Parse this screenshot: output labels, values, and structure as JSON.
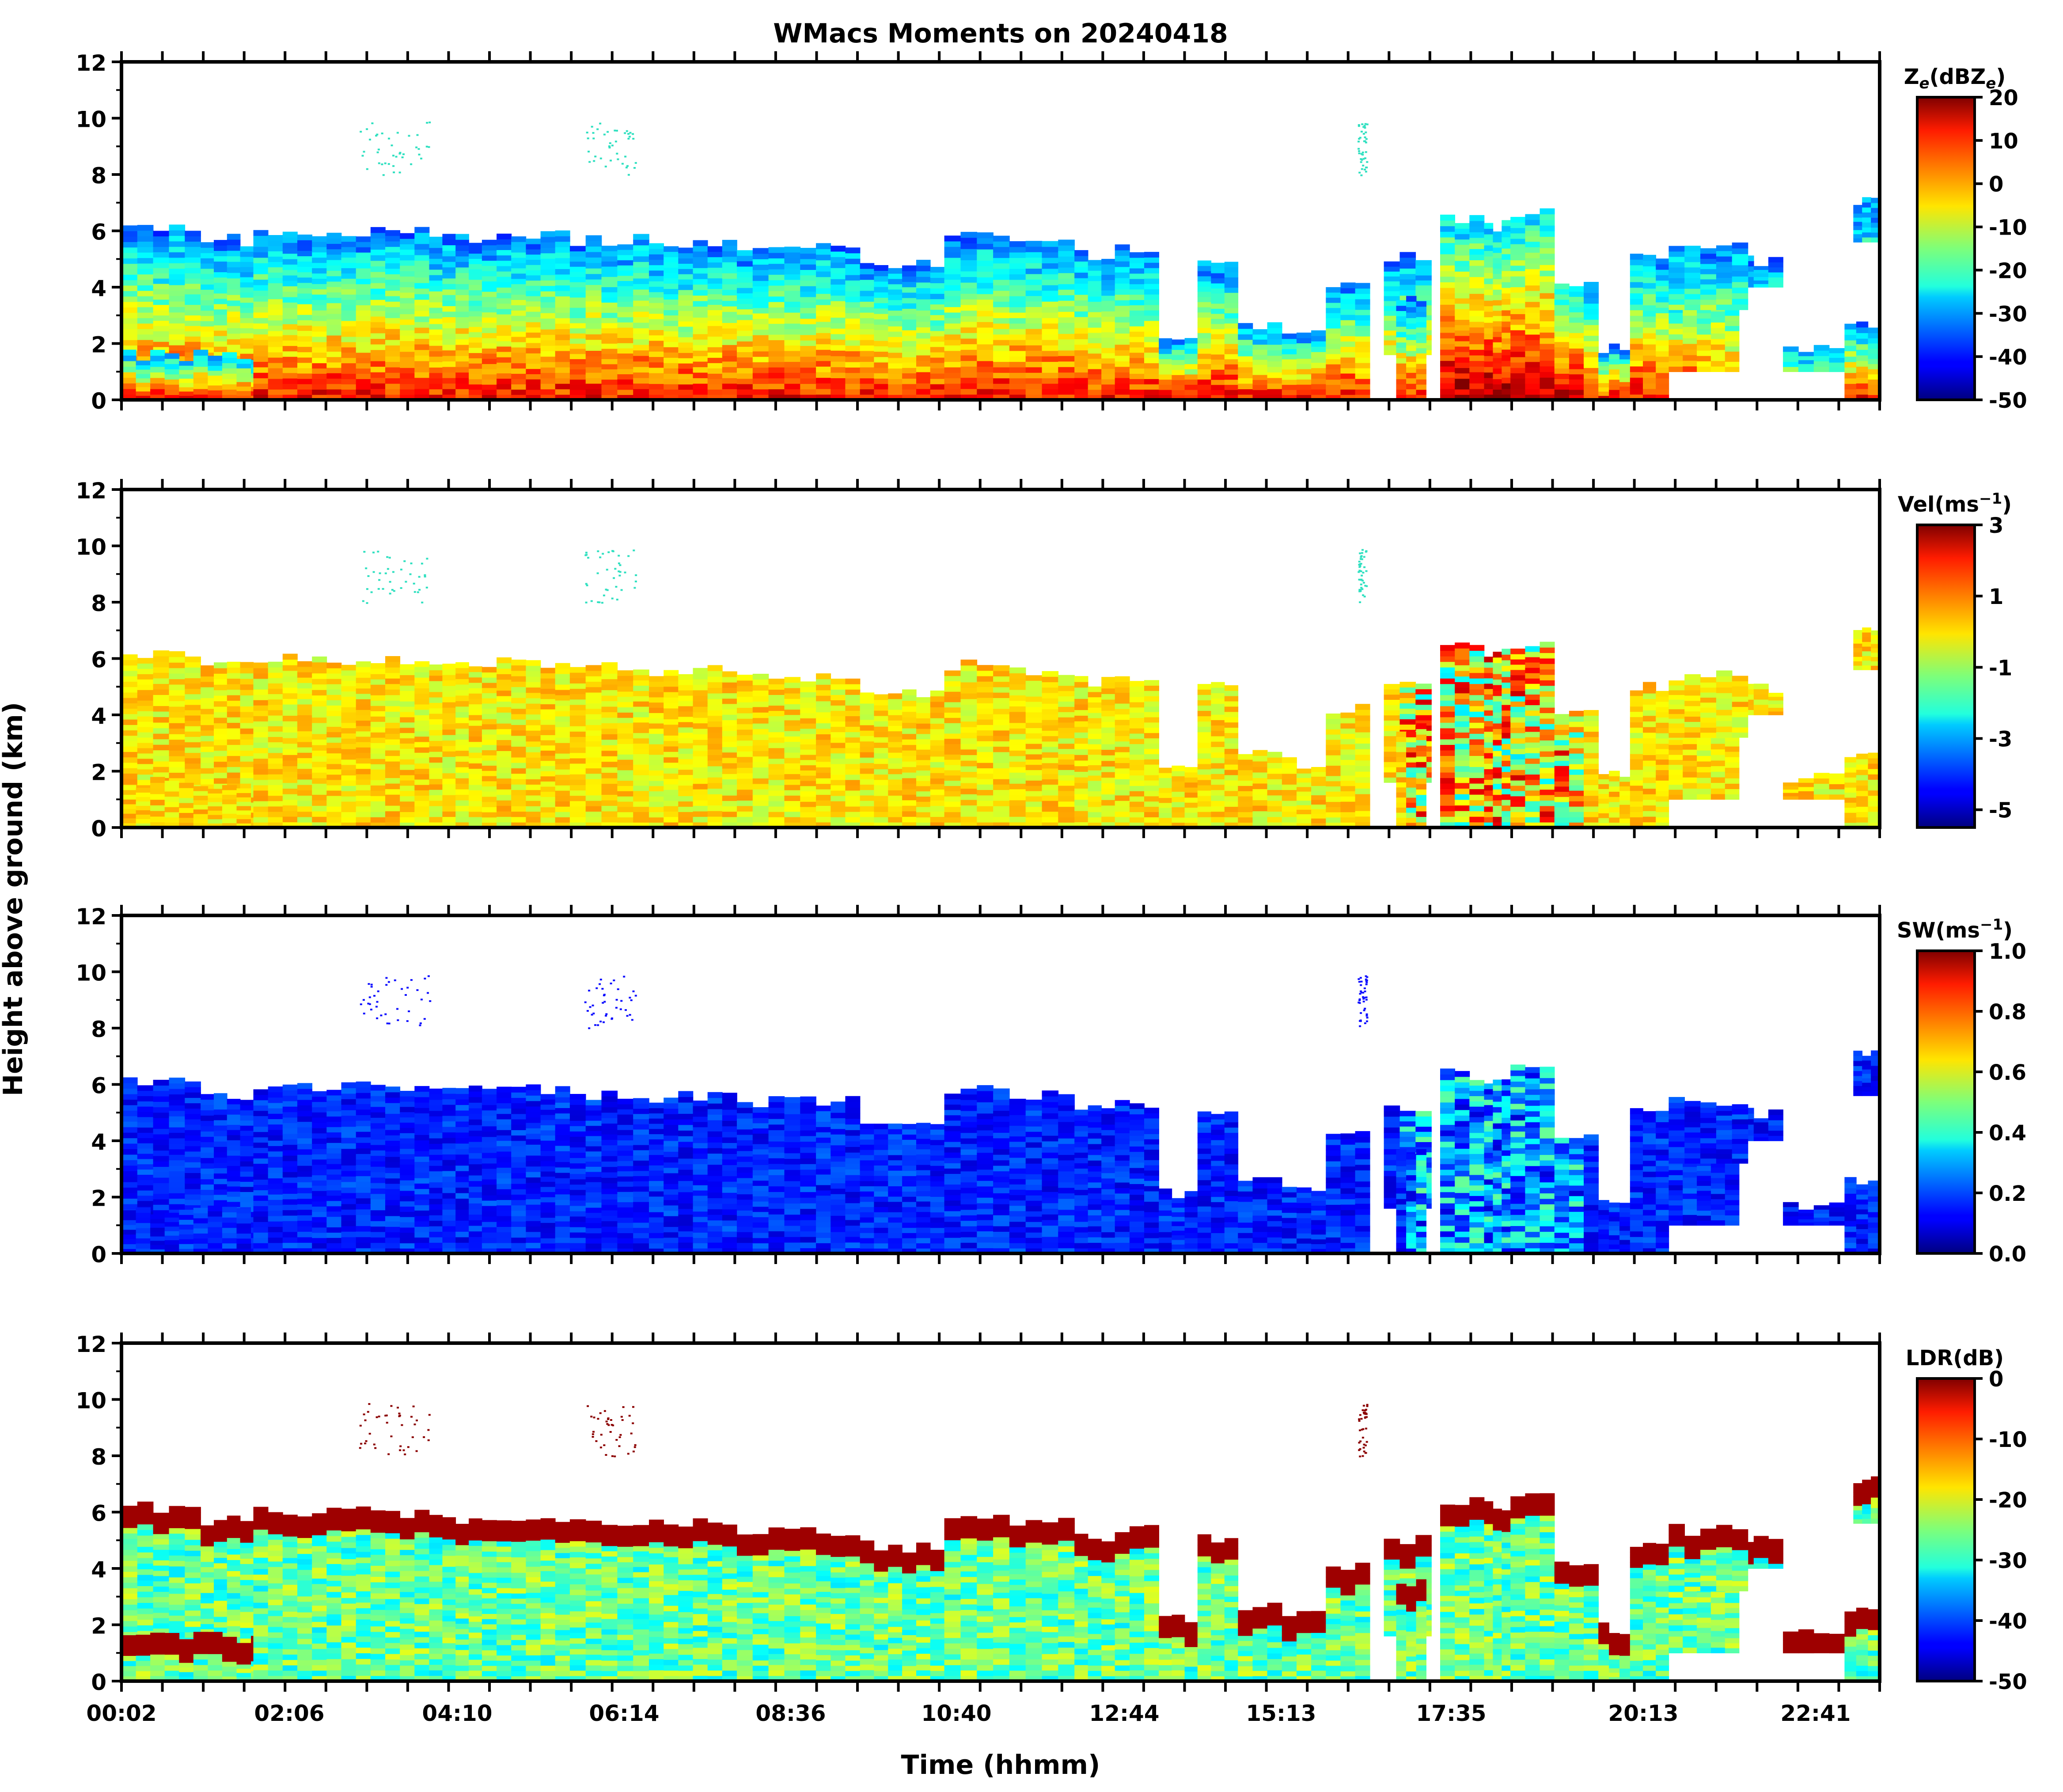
{
  "figure": {
    "title": "WMacs Moments on 20240418",
    "ylabel": "Height above ground (km)",
    "xlabel": "Time (hhmm)"
  },
  "chart_data": [
    {
      "type": "heatmap",
      "panel": "ze",
      "colorbar_label": "Z",
      "colorbar_label_sub": "e",
      "colorbar_label_rest": "(dBZ",
      "colorbar_label_sub2": "e",
      "colorbar_label_end": ")",
      "clim": [
        -50,
        20
      ],
      "colorbar_ticks": [
        "20",
        "10",
        "0",
        "-10",
        "-20",
        "-30",
        "-40",
        "-50"
      ],
      "ylim": [
        0,
        12
      ],
      "y_ticks": [
        "0",
        "2",
        "4",
        "6",
        "8",
        "10",
        "12"
      ],
      "x_tick_labels": [
        "00:02",
        "02:06",
        "04:10",
        "06:14",
        "08:36",
        "10:40",
        "12:44",
        "15:13",
        "17:35",
        "20:13",
        "22:41"
      ]
    },
    {
      "type": "heatmap",
      "panel": "vel",
      "colorbar_label": "Vel(ms",
      "colorbar_label_sup": "−1",
      "colorbar_label_end": ")",
      "clim": [
        -5.5,
        3
      ],
      "colorbar_ticks": [
        "3",
        "1",
        "-1",
        "-3",
        "-5"
      ],
      "ylim": [
        0,
        12
      ],
      "y_ticks": [
        "0",
        "2",
        "4",
        "6",
        "8",
        "10",
        "12"
      ],
      "x_tick_labels": [
        "00:02",
        "02:06",
        "04:10",
        "06:14",
        "08:36",
        "10:40",
        "12:44",
        "15:13",
        "17:35",
        "20:13",
        "22:41"
      ]
    },
    {
      "type": "heatmap",
      "panel": "sw",
      "colorbar_label": "SW(ms",
      "colorbar_label_sup": "−1",
      "colorbar_label_end": ")",
      "clim": [
        0,
        1
      ],
      "colorbar_ticks": [
        "1.0",
        "0.8",
        "0.6",
        "0.4",
        "0.2",
        "0.0"
      ],
      "ylim": [
        0,
        12
      ],
      "y_ticks": [
        "0",
        "2",
        "4",
        "6",
        "8",
        "10",
        "12"
      ],
      "x_tick_labels": [
        "00:02",
        "02:06",
        "04:10",
        "06:14",
        "08:36",
        "10:40",
        "12:44",
        "15:13",
        "17:35",
        "20:13",
        "22:41"
      ]
    },
    {
      "type": "heatmap",
      "panel": "ldr",
      "colorbar_label": "LDR(dB)",
      "clim": [
        -50,
        0
      ],
      "colorbar_ticks": [
        "0",
        "-10",
        "-20",
        "-30",
        "-40",
        "-50"
      ],
      "ylim": [
        0,
        12
      ],
      "y_ticks": [
        "0",
        "2",
        "4",
        "6",
        "8",
        "10",
        "12"
      ],
      "x_tick_labels": [
        "00:02",
        "02:06",
        "04:10",
        "06:14",
        "08:36",
        "10:40",
        "12:44",
        "15:13",
        "17:35",
        "20:13",
        "22:41"
      ]
    }
  ]
}
